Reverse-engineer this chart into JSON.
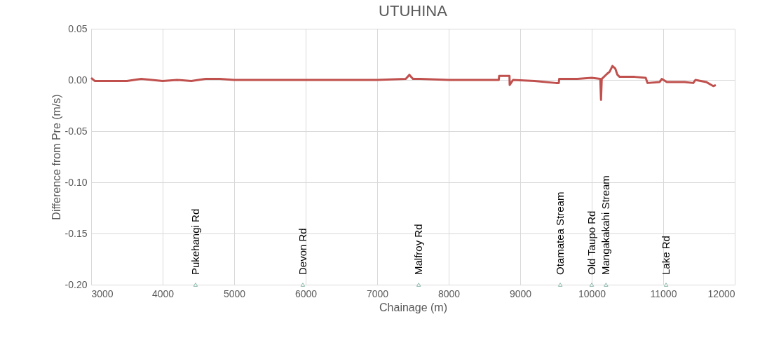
{
  "chart_data": {
    "type": "line",
    "title": "UTUHINA",
    "xlabel": "Chainage (m)",
    "ylabel": "Difference from Pre  (m/s)",
    "xlim": [
      3000,
      12000
    ],
    "xticks": [
      3000,
      4000,
      5000,
      6000,
      7000,
      8000,
      9000,
      10000,
      11000,
      12000
    ],
    "ylim": [
      -0.2,
      0.05
    ],
    "yticks": [
      0.05,
      {
        "value": 0,
        "label": "0.00"
      },
      {
        "value": -0.05,
        "label": "-0.05"
      },
      {
        "value": -0.1,
        "label": "-0.10"
      },
      {
        "value": -0.15,
        "label": "-0.15"
      },
      {
        "value": -0.2,
        "label": "-0.20"
      }
    ],
    "grid": true,
    "line_style": "solid",
    "series": [
      {
        "color": "#c0504d",
        "x": [
          3000,
          3050,
          3500,
          3700,
          4000,
          4200,
          4400,
          4600,
          4800,
          5000,
          5500,
          6000,
          6500,
          7000,
          7400,
          7450,
          7500,
          7600,
          8000,
          8700,
          8706,
          8850,
          8853,
          8900,
          9200,
          9500,
          9540,
          9545,
          9800,
          10000,
          10120,
          10130,
          10140,
          10215,
          10250,
          10290,
          10330,
          10360,
          10390,
          10600,
          10755,
          10780,
          10950,
          10980,
          11050,
          11300,
          11420,
          11450,
          11600,
          11700,
          11735
        ],
        "values": [
          0.002,
          -0.001,
          -0.001,
          0.001,
          -0.001,
          0,
          -0.001,
          0.001,
          0.001,
          0,
          0,
          0,
          0,
          0,
          0.001,
          0.005,
          0.001,
          0.001,
          0,
          0,
          0.004,
          0.004,
          -0.005,
          0,
          -0.001,
          -0.003,
          -0.003,
          0.001,
          0.001,
          0.002,
          0.001,
          -0.0195,
          0.001,
          0.006,
          0.008,
          0.0136,
          0.011,
          0.005,
          0.003,
          0.003,
          0.002,
          -0.003,
          -0.002,
          0.001,
          -0.002,
          -0.002,
          -0.003,
          0.0,
          -0.002,
          -0.006,
          -0.005
        ]
      },
      {
        "type": "scatter",
        "color": "#5b9a8b",
        "marker": "triangle",
        "x": [
          4460,
          5960,
          7580,
          9560,
          10000,
          10200,
          11040
        ],
        "values": [
          -0.2,
          -0.2,
          -0.2,
          -0.2,
          -0.2,
          -0.2,
          -0.2
        ]
      }
    ],
    "annotations": [
      {
        "text": "Pukehangi Rd",
        "x": 4460,
        "y": -0.2
      },
      {
        "text": "Devon Rd",
        "x": 5960,
        "y": -0.2
      },
      {
        "text": "Malfroy Rd",
        "x": 7580,
        "y": -0.2
      },
      {
        "text": "Otamatea Stream",
        "x": 9560,
        "y": -0.2
      },
      {
        "text": "Old Taupo Rd",
        "x": 10000,
        "y": -0.2
      },
      {
        "text": "Mangakakahi Stream",
        "x": 10200,
        "y": -0.2
      },
      {
        "text": "Lake Rd",
        "x": 11040,
        "y": -0.2
      }
    ]
  }
}
